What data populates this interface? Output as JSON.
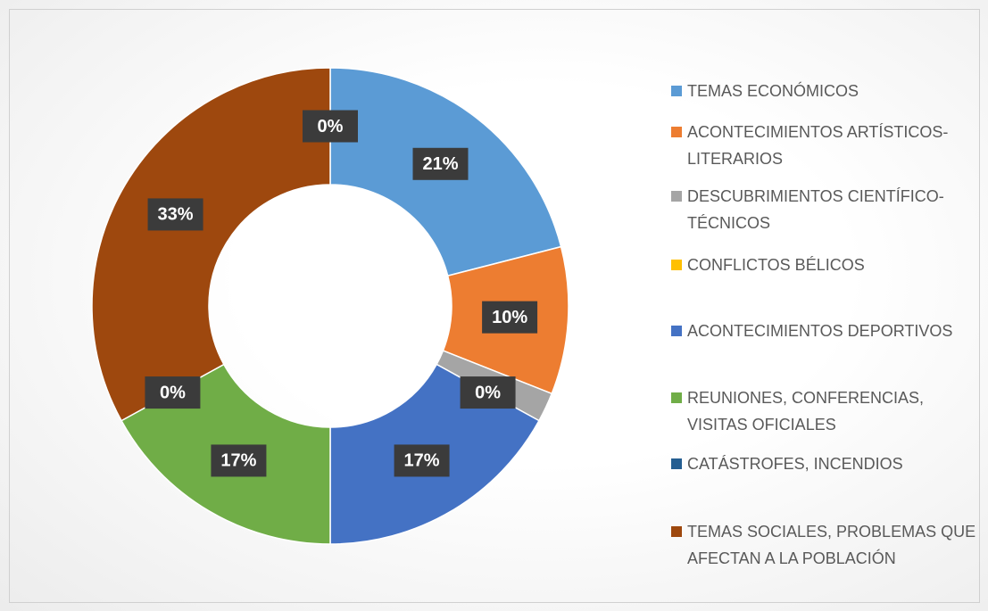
{
  "chart_data": {
    "type": "donut",
    "categories": [
      "TEMAS ECONÓMICOS",
      "ACONTECIMIENTOS ARTÍSTICOS-LITERARIOS",
      "DESCUBRIMIENTOS CIENTÍFICO-TÉCNICOS",
      "CONFLICTOS BÉLICOS",
      "ACONTECIMIENTOS DEPORTIVOS",
      "REUNIONES, CONFERENCIAS, VISITAS OFICIALES",
      "CATÁSTROFES, INCENDIOS",
      "TEMAS SOCIALES, PROBLEMAS QUE AFECTAN A LA POBLACIÓN",
      null
    ],
    "values": [
      21,
      10,
      2,
      0,
      17,
      17,
      0,
      33,
      0
    ],
    "value_labels": [
      "21%",
      "10%",
      null,
      "0%",
      "17%",
      "17%",
      "0%",
      "33%",
      "0%"
    ],
    "colors": [
      "#5b9bd5",
      "#ed7d31",
      "#a5a5a5",
      "#ffc000",
      "#4472c4",
      "#70ad47",
      "#255e91",
      "#9e480e",
      "#636363"
    ],
    "legend": "right"
  }
}
